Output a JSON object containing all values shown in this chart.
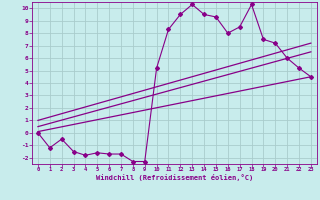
{
  "xlabel": "Windchill (Refroidissement éolien,°C)",
  "background_color": "#c8ecec",
  "grid_color": "#aacccc",
  "line_color": "#880088",
  "xlim": [
    -0.5,
    23.5
  ],
  "ylim": [
    -2.5,
    10.5
  ],
  "xticks": [
    0,
    1,
    2,
    3,
    4,
    5,
    6,
    7,
    8,
    9,
    10,
    11,
    12,
    13,
    14,
    15,
    16,
    17,
    18,
    19,
    20,
    21,
    22,
    23
  ],
  "yticks": [
    -2,
    -1,
    0,
    1,
    2,
    3,
    4,
    5,
    6,
    7,
    8,
    9,
    10
  ],
  "series1_x": [
    0,
    1,
    2,
    3,
    4,
    5,
    6,
    7,
    8,
    9,
    10,
    11,
    12,
    13,
    14,
    15,
    16,
    17,
    18,
    19,
    20,
    21,
    22,
    23
  ],
  "series1_y": [
    0.0,
    -1.2,
    -0.5,
    -1.5,
    -1.8,
    -1.6,
    -1.7,
    -1.7,
    -2.3,
    -2.3,
    5.2,
    8.3,
    9.5,
    10.3,
    9.5,
    9.3,
    8.0,
    8.5,
    10.3,
    7.5,
    7.2,
    6.0,
    5.2,
    4.5
  ],
  "line2_x0": 0,
  "line2_x1": 23,
  "line2_y0": 0.1,
  "line2_y1": 4.5,
  "line3_x0": 0,
  "line3_x1": 23,
  "line3_y0": 0.5,
  "line3_y1": 6.5,
  "line4_x0": 0,
  "line4_x1": 23,
  "line4_y0": 1.0,
  "line4_y1": 7.2
}
